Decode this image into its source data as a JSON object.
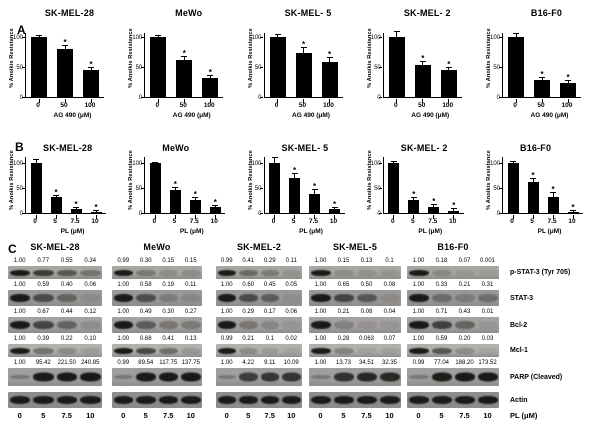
{
  "figure": {
    "panel_labels": {
      "A": "A",
      "B": "B",
      "C": "C"
    }
  },
  "chart_data": [
    {
      "type": "bar",
      "panel": "A",
      "title": "SK-MEL-28",
      "categories": [
        "0",
        "50",
        "100"
      ],
      "values": [
        100,
        80,
        45
      ],
      "errors": [
        2,
        5,
        3
      ],
      "sig": [
        false,
        true,
        true
      ],
      "xlabel": "AG 490 (μM)",
      "ylabel": "% Anoikis Resistance",
      "ylim": [
        0,
        100
      ],
      "yticks": [
        0,
        50,
        100
      ],
      "bar_color": "#000000",
      "sig_marker": "*"
    },
    {
      "type": "bar",
      "panel": "A",
      "title": "MeWo",
      "categories": [
        "0",
        "50",
        "100"
      ],
      "values": [
        100,
        62,
        32
      ],
      "errors": [
        2,
        4,
        3
      ],
      "sig": [
        false,
        true,
        true
      ],
      "xlabel": "AG 490 (μM)",
      "ylabel": "% Anoikis Resistance",
      "ylim": [
        0,
        100
      ],
      "yticks": [
        0,
        50,
        100
      ],
      "bar_color": "#000000",
      "sig_marker": "*"
    },
    {
      "type": "bar",
      "panel": "A",
      "title": "SK-MEL- 5",
      "categories": [
        "0",
        "50",
        "100"
      ],
      "values": [
        100,
        73,
        58
      ],
      "errors": [
        3,
        9,
        7
      ],
      "sig": [
        false,
        true,
        true
      ],
      "xlabel": "AG 490 (μM)",
      "ylabel": "% Anoikis Resistance",
      "ylim": [
        0,
        100
      ],
      "yticks": [
        0,
        50,
        100
      ],
      "bar_color": "#000000",
      "sig_marker": "*"
    },
    {
      "type": "bar",
      "panel": "A",
      "title": "SK-MEL- 2",
      "categories": [
        "0",
        "50",
        "100"
      ],
      "values": [
        100,
        53,
        45
      ],
      "errors": [
        8,
        5,
        4
      ],
      "sig": [
        false,
        true,
        true
      ],
      "xlabel": "AG 490 (μM)",
      "ylabel": "% Anoikis Resistance",
      "ylim": [
        0,
        100
      ],
      "yticks": [
        0,
        50,
        100
      ],
      "bar_color": "#000000",
      "sig_marker": "*"
    },
    {
      "type": "bar",
      "panel": "A",
      "title": "B16-F0",
      "categories": [
        "0",
        "50",
        "100"
      ],
      "values": [
        100,
        28,
        23
      ],
      "errors": [
        5,
        4,
        4
      ],
      "sig": [
        false,
        true,
        true
      ],
      "xlabel": "AG 490 (μM)",
      "ylabel": "% Anoikis Resistance",
      "ylim": [
        0,
        100
      ],
      "yticks": [
        0,
        50,
        100
      ],
      "bar_color": "#000000",
      "sig_marker": "*"
    },
    {
      "type": "bar",
      "panel": "B",
      "title": "SK-MEL-28",
      "categories": [
        "0",
        "5",
        "7.5",
        "10"
      ],
      "values": [
        100,
        32,
        8,
        3
      ],
      "errors": [
        6,
        3,
        3,
        2
      ],
      "sig": [
        false,
        true,
        true,
        true
      ],
      "xlabel": "PL (μM)",
      "ylabel": "% Anoikis Resistance",
      "ylim": [
        0,
        100
      ],
      "yticks": [
        0,
        50,
        100
      ],
      "bar_color": "#000000",
      "sig_marker": "*"
    },
    {
      "type": "bar",
      "panel": "B",
      "title": "MeWo",
      "categories": [
        "0",
        "5",
        "7.5",
        "10"
      ],
      "values": [
        100,
        47,
        27,
        12
      ],
      "errors": [
        1,
        4,
        3,
        3
      ],
      "sig": [
        false,
        true,
        true,
        true
      ],
      "xlabel": "PL (μM)",
      "ylabel": "% Anoikis Resistance",
      "ylim": [
        0,
        100
      ],
      "yticks": [
        0,
        50,
        100
      ],
      "bar_color": "#000000",
      "sig_marker": "*"
    },
    {
      "type": "bar",
      "panel": "B",
      "title": "SK-MEL- 5",
      "categories": [
        "0",
        "5",
        "7.5",
        "10"
      ],
      "values": [
        100,
        70,
        38,
        8
      ],
      "errors": [
        10,
        8,
        8,
        3
      ],
      "sig": [
        false,
        true,
        true,
        true
      ],
      "xlabel": "PL (μM)",
      "ylabel": "% Anoikis Resistance",
      "ylim": [
        0,
        100
      ],
      "yticks": [
        0,
        50,
        100
      ],
      "bar_color": "#000000",
      "sig_marker": "*"
    },
    {
      "type": "bar",
      "panel": "B",
      "title": "SK-MEL- 2",
      "categories": [
        "0",
        "5",
        "7.5",
        "10"
      ],
      "values": [
        100,
        27,
        12,
        5
      ],
      "errors": [
        3,
        4,
        4,
        3
      ],
      "sig": [
        false,
        true,
        true,
        true
      ],
      "xlabel": "PL (μM)",
      "ylabel": "% Anoikis Resistance",
      "ylim": [
        0,
        100
      ],
      "yticks": [
        0,
        50,
        100
      ],
      "bar_color": "#000000",
      "sig_marker": "*"
    },
    {
      "type": "bar",
      "panel": "B",
      "title": "B16-F0",
      "categories": [
        "0",
        "5",
        "7.5",
        "10"
      ],
      "values": [
        100,
        63,
        33,
        3
      ],
      "errors": [
        2,
        5,
        7,
        2
      ],
      "sig": [
        false,
        true,
        true,
        true
      ],
      "xlabel": "PL (μM)",
      "ylabel": "% Anoikis Resistance",
      "ylim": [
        0,
        100
      ],
      "yticks": [
        0,
        50,
        100
      ],
      "bar_color": "#000000",
      "sig_marker": "*"
    }
  ],
  "blots": {
    "row_labels": [
      "p-STAT-3  (Tyr 705)",
      "STAT-3",
      "Bcl-2",
      "Mcl-1",
      "PARP (Cleaved)",
      "Actin"
    ],
    "dose_ticks": [
      "0",
      "5",
      "7.5",
      "10"
    ],
    "dose_axis_label": "PL (μM)",
    "columns": [
      {
        "title": "SK-MEL-28",
        "quant": [
          [
            "1.00",
            "0.77",
            "0.55",
            "0.34"
          ],
          [
            "1.00",
            "0.59",
            "0.40",
            "0.06"
          ],
          [
            "1.00",
            "0.67",
            "0.44",
            "0.12"
          ],
          [
            "1.00",
            "0.39",
            "0.22",
            "0.10"
          ],
          [
            "1.00",
            "95.42",
            "221.50",
            "240.85"
          ],
          null
        ]
      },
      {
        "title": "MeWo",
        "quant": [
          [
            "0.99",
            "0.30",
            "0.15",
            "0.15"
          ],
          [
            "1.00",
            "0.58",
            "0.19",
            "0.11"
          ],
          [
            "1.00",
            "0.49",
            "0.30",
            "0.27"
          ],
          [
            "1.00",
            "0.68",
            "0.41",
            "0.13"
          ],
          [
            "0.99",
            "89.54",
            "117.75",
            "137.75"
          ],
          null
        ]
      },
      {
        "title": "SK-MEL-2",
        "quant": [
          [
            "0.99",
            "0.41",
            "0.29",
            "0.11"
          ],
          [
            "1.00",
            "0.60",
            "0.45",
            "0.05"
          ],
          [
            "1.00",
            "0.29",
            "0.17",
            "0.06"
          ],
          [
            "0.99",
            "0.21",
            "0.1",
            "0.02"
          ],
          [
            "1.00",
            "4.22",
            "9.11",
            "10.09"
          ],
          null
        ]
      },
      {
        "title": "SK-MEL-5",
        "quant": [
          [
            "1.00",
            "0.15",
            "0.13",
            "0.1"
          ],
          [
            "1.00",
            "0.65",
            "0.50",
            "0.08"
          ],
          [
            "1.00",
            "0.21",
            "0.08",
            "0.04"
          ],
          [
            "1.00",
            "0.28",
            "0.063",
            "0.07"
          ],
          [
            "1.00",
            "13.73",
            "34.51",
            "32.35"
          ],
          null
        ]
      },
      {
        "title": "B16-F0",
        "quant": [
          [
            "1.00",
            "0.18",
            "0.07",
            "0.001"
          ],
          [
            "1.00",
            "0.33",
            "0.21",
            "0.31"
          ],
          [
            "1.00",
            "0.71",
            "0.43",
            "0.01"
          ],
          [
            "1.00",
            "0.59",
            "0.20",
            "0.03"
          ],
          [
            "0.99",
            "77.04",
            "188.20",
            "173.52"
          ],
          null
        ]
      }
    ]
  }
}
